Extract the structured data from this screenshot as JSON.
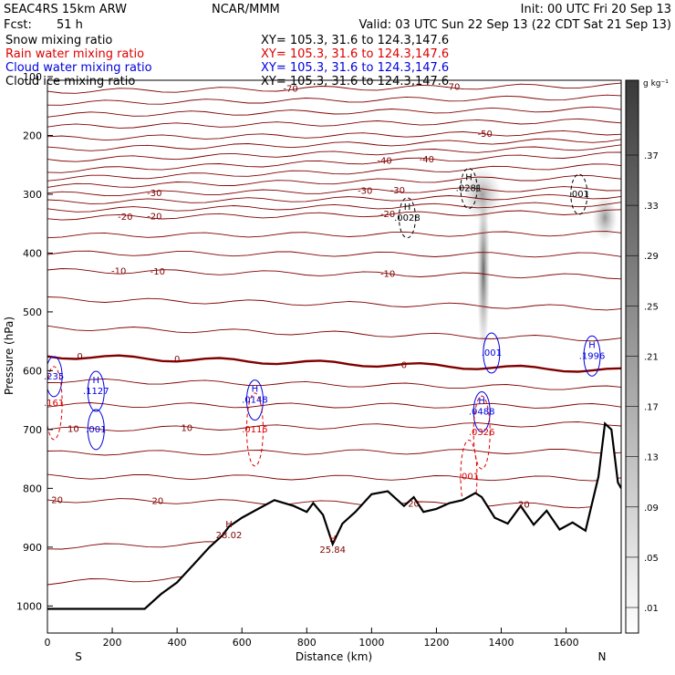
{
  "header": {
    "model": "SEAC4RS 15km ARW",
    "producer": "NCAR/MMM",
    "init": "Init: 00 UTC Fri 20 Sep 13",
    "fcst_label": "Fcst:",
    "fcst_value": "51 h",
    "valid": "Valid: 03 UTC Sun 22 Sep 13 (22 CDT Sat 21 Sep 13)",
    "fields": [
      {
        "name": "Snow mixing ratio",
        "xy": "XY= 105.3, 31.6 to 124.3,147.6",
        "color": "#000000"
      },
      {
        "name": "Rain water mixing ratio",
        "xy": "XY= 105.3, 31.6 to 124.3,147.6",
        "color": "#dd0000"
      },
      {
        "name": "Cloud water mixing ratio",
        "xy": "XY= 105.3, 31.6 to 124.3,147.6",
        "color": "#0000dd"
      },
      {
        "name": "Cloud ice mixing ratio",
        "xy": "XY= 105.3, 31.6 to 124.3,147.6",
        "color": "#000000"
      }
    ]
  },
  "colors": {
    "temperature": "#800000",
    "freezing": "#6b0000",
    "rain": "#dd0000",
    "cloud_water": "#0000dd",
    "terrain": "#000000"
  },
  "chart_data": {
    "type": "cross-section",
    "xlabel": "Distance (km)",
    "ylabel": "Pressure (hPa)",
    "xlim": [
      0,
      1770
    ],
    "ylim": [
      1050,
      100
    ],
    "x_ticks": [
      0,
      200,
      400,
      600,
      800,
      1000,
      1200,
      1400,
      1600
    ],
    "y_ticks": [
      100,
      200,
      300,
      400,
      500,
      600,
      700,
      800,
      900,
      1000
    ],
    "endpoints": {
      "left": "S",
      "right": "N"
    },
    "colorbar": {
      "unit": "g kg⁻¹",
      "ticks": [
        ".01",
        ".05",
        ".09",
        ".13",
        ".17",
        ".21",
        ".25",
        ".29",
        ".33",
        ".37"
      ],
      "levels": [
        0.01,
        0.05,
        0.09,
        0.13,
        0.17,
        0.21,
        0.25,
        0.29,
        0.33,
        0.37
      ]
    },
    "terrain": {
      "x": [
        0,
        300,
        350,
        400,
        450,
        500,
        540,
        560,
        600,
        650,
        700,
        760,
        800,
        820,
        850,
        880,
        910,
        950,
        1000,
        1050,
        1100,
        1130,
        1160,
        1200,
        1240,
        1280,
        1320,
        1340,
        1380,
        1420,
        1460,
        1500,
        1540,
        1580,
        1620,
        1660,
        1700,
        1720,
        1740,
        1760,
        1770
      ],
      "p": [
        1005,
        1005,
        980,
        960,
        930,
        900,
        880,
        865,
        850,
        835,
        820,
        830,
        840,
        825,
        845,
        895,
        860,
        840,
        810,
        805,
        830,
        815,
        840,
        835,
        825,
        820,
        808,
        815,
        850,
        860,
        830,
        862,
        838,
        870,
        858,
        872,
        780,
        690,
        700,
        790,
        800
      ]
    },
    "temperature_contours": [
      {
        "label": "-70",
        "p_left": 125,
        "p_right": 115,
        "label_x": [
          750,
          1250
        ]
      },
      {
        "label": "-50",
        "p_left": 205,
        "p_right": 195,
        "label_x": [
          1350
        ]
      },
      {
        "label": "-40",
        "p_left": 260,
        "p_right": 232,
        "label_x": [
          1040,
          1170
        ]
      },
      {
        "label": "-30",
        "p_left": 300,
        "p_right": 290,
        "label_x": [
          330,
          980,
          1080
        ]
      },
      {
        "label": "-20",
        "p_left": 340,
        "p_right": 330,
        "label_x": [
          240,
          330,
          1050
        ]
      },
      {
        "label": "-10",
        "p_left": 430,
        "p_right": 440,
        "label_x": [
          220,
          340,
          1050
        ]
      },
      {
        "label": "0",
        "p_left": 575,
        "p_right": 600,
        "label_x": [
          100,
          400,
          1100
        ],
        "bold": true
      },
      {
        "label": "10",
        "p_left": 700,
        "p_right": 690,
        "label_x": [
          80,
          430
        ]
      },
      {
        "label": "20",
        "p_left": 820,
        "p_right": 830,
        "label_x": [
          30,
          340,
          1130,
          1470
        ]
      }
    ],
    "maxima": [
      {
        "mark": "H",
        "value": ".0281",
        "x": 1300,
        "p": 290,
        "field": "snow"
      },
      {
        "mark": "H",
        "value": ".0028",
        "x": 1110,
        "p": 340,
        "field": "ice"
      },
      {
        "mark": "",
        "value": ".001",
        "x": 1640,
        "p": 300,
        "field": "ice"
      },
      {
        "mark": "",
        "value": ".001",
        "x": 1370,
        "p": 570,
        "field": "cloud"
      },
      {
        "mark": "H",
        "value": ".1996",
        "x": 1680,
        "p": 575,
        "field": "cloud"
      },
      {
        "mark": "H",
        "value": ".1127",
        "x": 150,
        "p": 635,
        "field": "cloud"
      },
      {
        "mark": "",
        "value": ".235",
        "x": 20,
        "p": 610,
        "field": "cloud"
      },
      {
        "mark": "",
        "value": ".161",
        "x": 20,
        "p": 655,
        "field": "rain"
      },
      {
        "mark": "",
        "value": ".001",
        "x": 150,
        "p": 700,
        "field": "cloud"
      },
      {
        "mark": "H",
        "value": ".0148",
        "x": 640,
        "p": 650,
        "field": "cloud"
      },
      {
        "mark": "",
        "value": ".0115",
        "x": 640,
        "p": 700,
        "field": "rain"
      },
      {
        "mark": "H",
        "value": ".0488",
        "x": 1340,
        "p": 670,
        "field": "cloud"
      },
      {
        "mark": "",
        "value": ".0326",
        "x": 1340,
        "p": 705,
        "field": "rain"
      },
      {
        "mark": "",
        "value": ".001",
        "x": 1300,
        "p": 780,
        "field": "rain"
      },
      {
        "mark": "H",
        "value": "28.02",
        "x": 560,
        "p": 880,
        "field": "temp"
      },
      {
        "mark": "H",
        "value": "25.84",
        "x": 880,
        "p": 905,
        "field": "temp"
      }
    ]
  }
}
